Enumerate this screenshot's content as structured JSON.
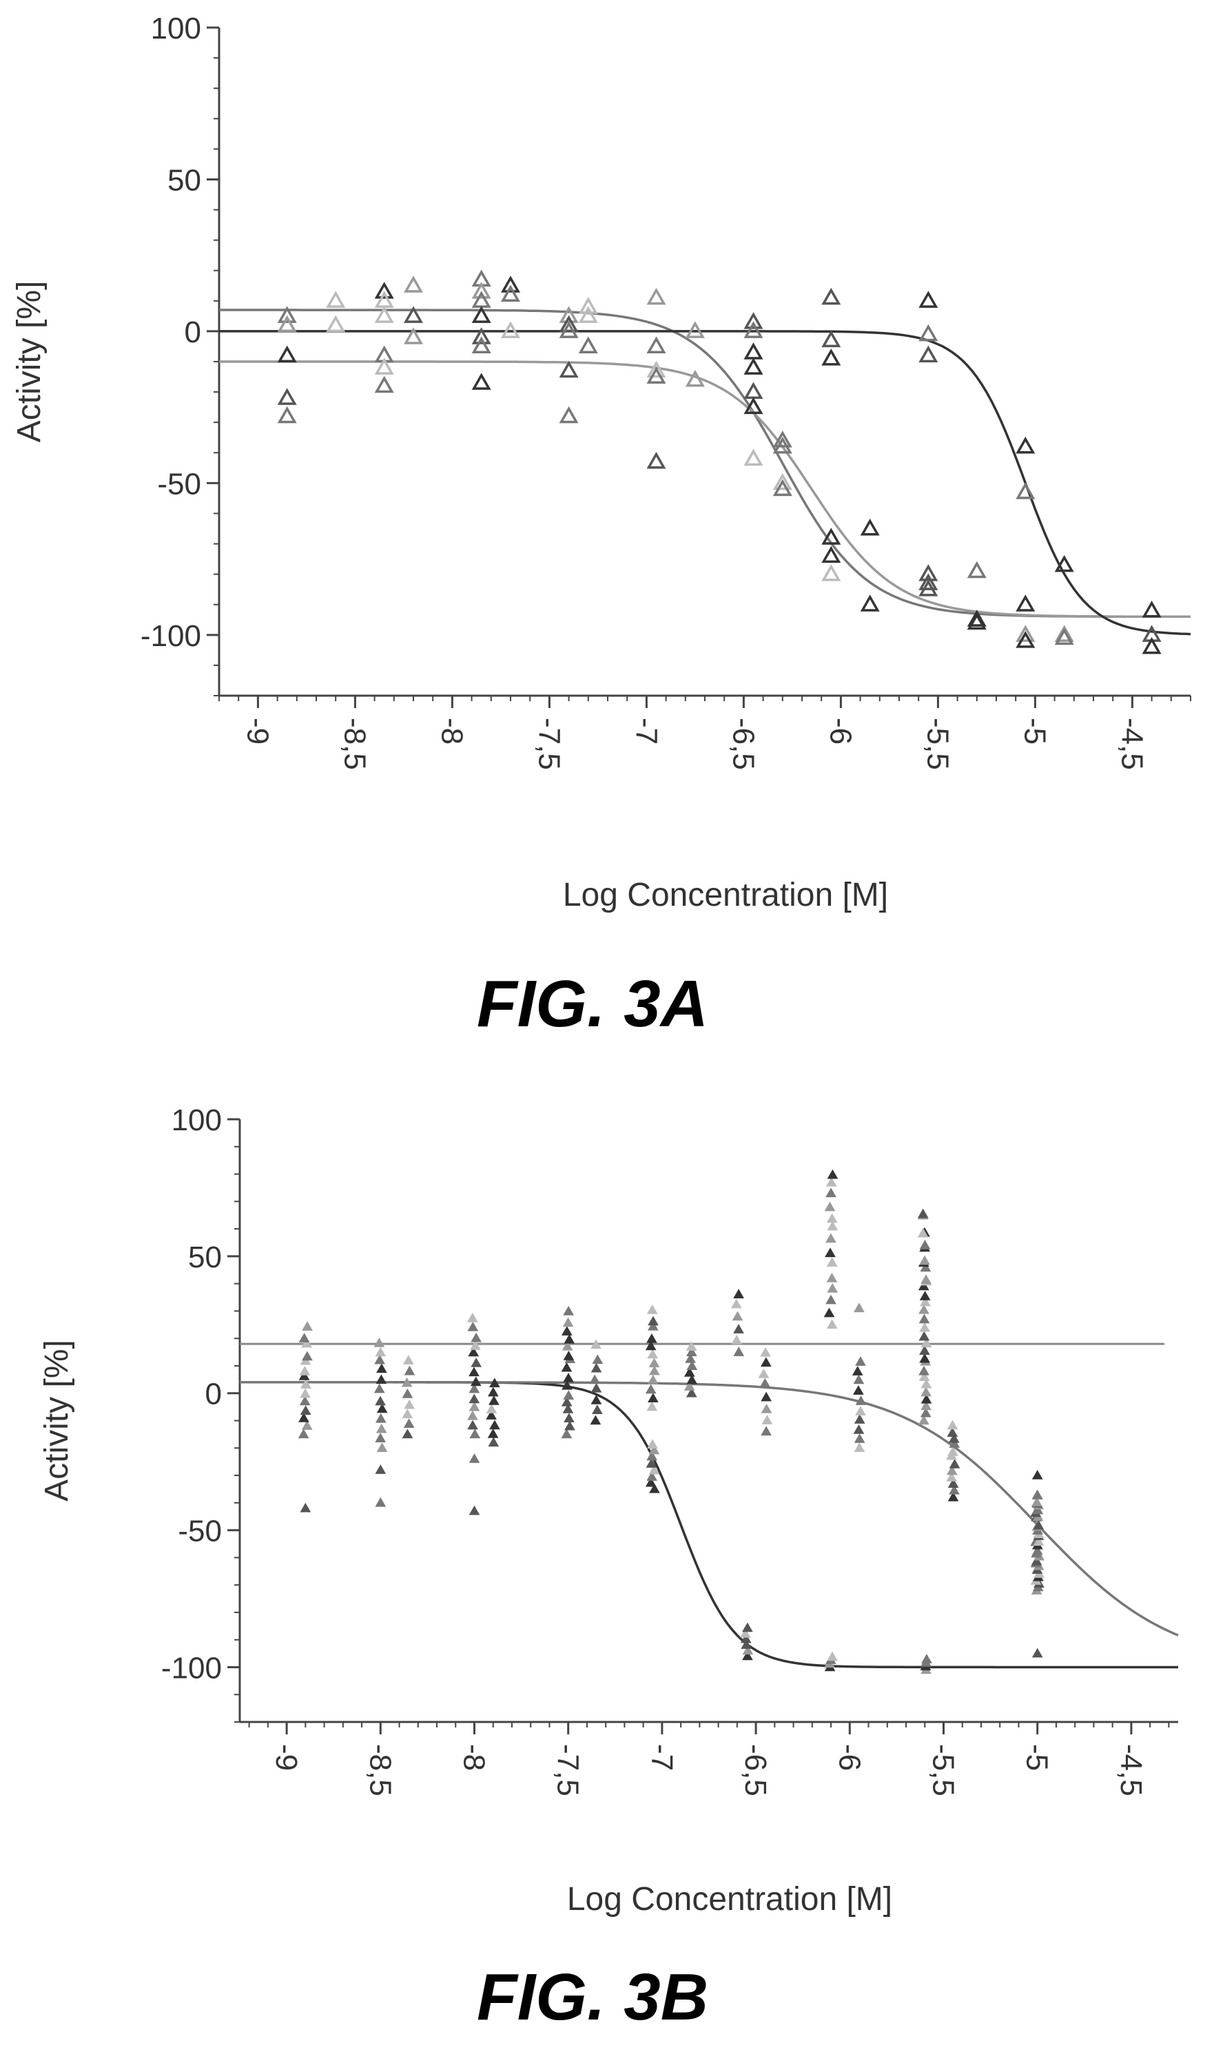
{
  "chart_data": [
    {
      "type": "scatter",
      "caption": "FIG. 3A",
      "xlabel": "Log Concentration [M]",
      "ylabel": "Activity [%]",
      "xlim": [
        -9.2,
        -4.2
      ],
      "ylim": [
        -120,
        100
      ],
      "xticks": [
        -9,
        -8.5,
        -8,
        -7.5,
        -7,
        -6.5,
        -6,
        -5.5,
        -5,
        -4.5
      ],
      "xtick_labels": [
        "-9",
        "-8,5",
        "-8",
        "-7,5",
        "-7",
        "-6,5",
        "-6",
        "-5,5",
        "-5",
        "-4,5"
      ],
      "yticks": [
        100,
        50,
        0,
        -50,
        -100
      ],
      "ytick_labels": [
        "100",
        "50",
        "0",
        "-50",
        "-100"
      ],
      "grid": false,
      "marker": "triangle",
      "curves": [
        {
          "bottom": 7,
          "top": -94,
          "logec50": -6.3,
          "hill": 2.0,
          "color": "#777777"
        },
        {
          "bottom": -10,
          "top": -94,
          "logec50": -6.15,
          "hill": 2.0,
          "color": "#999999"
        },
        {
          "bottom": 0,
          "top": -100,
          "logec50": -5.05,
          "hill": 3.0,
          "color": "#333333"
        }
      ],
      "points": [
        [
          -8.85,
          5
        ],
        [
          -8.85,
          2
        ],
        [
          -8.85,
          -8
        ],
        [
          -8.85,
          -22
        ],
        [
          -8.85,
          -28
        ],
        [
          -8.6,
          10
        ],
        [
          -8.6,
          2
        ],
        [
          -8.35,
          13
        ],
        [
          -8.35,
          10
        ],
        [
          -8.35,
          5
        ],
        [
          -8.35,
          -8
        ],
        [
          -8.35,
          -12
        ],
        [
          -8.35,
          -18
        ],
        [
          -8.2,
          15
        ],
        [
          -8.2,
          5
        ],
        [
          -8.2,
          -2
        ],
        [
          -7.85,
          17
        ],
        [
          -7.85,
          13
        ],
        [
          -7.85,
          10
        ],
        [
          -7.85,
          5
        ],
        [
          -7.85,
          -2
        ],
        [
          -7.85,
          -5
        ],
        [
          -7.85,
          -17
        ],
        [
          -7.7,
          15
        ],
        [
          -7.7,
          12
        ],
        [
          -7.7,
          0
        ],
        [
          -7.4,
          5
        ],
        [
          -7.4,
          2
        ],
        [
          -7.4,
          0
        ],
        [
          -7.4,
          -13
        ],
        [
          -7.4,
          -28
        ],
        [
          -7.3,
          8
        ],
        [
          -7.3,
          5
        ],
        [
          -7.3,
          -5
        ],
        [
          -6.95,
          11
        ],
        [
          -6.95,
          -5
        ],
        [
          -6.95,
          -13
        ],
        [
          -6.95,
          -15
        ],
        [
          -6.95,
          -43
        ],
        [
          -6.75,
          0
        ],
        [
          -6.75,
          -16
        ],
        [
          -6.45,
          3
        ],
        [
          -6.45,
          0
        ],
        [
          -6.45,
          -7
        ],
        [
          -6.45,
          -12
        ],
        [
          -6.45,
          -20
        ],
        [
          -6.45,
          -25
        ],
        [
          -6.45,
          -42
        ],
        [
          -6.3,
          -36
        ],
        [
          -6.3,
          -38
        ],
        [
          -6.3,
          -50
        ],
        [
          -6.3,
          -52
        ],
        [
          -6.05,
          11
        ],
        [
          -6.05,
          -3
        ],
        [
          -6.05,
          -9
        ],
        [
          -6.05,
          -68
        ],
        [
          -6.05,
          -74
        ],
        [
          -6.05,
          -80
        ],
        [
          -5.85,
          -65
        ],
        [
          -5.85,
          -90
        ],
        [
          -5.55,
          10
        ],
        [
          -5.55,
          -1
        ],
        [
          -5.55,
          -8
        ],
        [
          -5.55,
          -80
        ],
        [
          -5.55,
          -83
        ],
        [
          -5.55,
          -85
        ],
        [
          -5.3,
          -79
        ],
        [
          -5.3,
          -95
        ],
        [
          -5.3,
          -96
        ],
        [
          -5.05,
          -38
        ],
        [
          -5.05,
          -53
        ],
        [
          -5.05,
          -90
        ],
        [
          -5.05,
          -100
        ],
        [
          -5.05,
          -102
        ],
        [
          -4.85,
          -77
        ],
        [
          -4.85,
          -100
        ],
        [
          -4.85,
          -101
        ],
        [
          -4.4,
          -92
        ],
        [
          -4.4,
          -100
        ],
        [
          -4.4,
          -104
        ]
      ]
    },
    {
      "type": "scatter",
      "caption": "FIG. 3B",
      "xlabel": "Log Concentration [M]",
      "ylabel": "Activity [%]",
      "xlim": [
        -9.25,
        -4.25
      ],
      "ylim": [
        -120,
        100
      ],
      "xticks": [
        -9,
        -8.5,
        -8,
        -7.5,
        -7,
        -6.5,
        -6,
        -5.5,
        -5,
        -4.5
      ],
      "xtick_labels": [
        "-9",
        "-8,5",
        "-8",
        "-7,5",
        "-7",
        "-6,5",
        "-6",
        "-5,5",
        "-5",
        "-4,5"
      ],
      "yticks": [
        100,
        50,
        0,
        -50,
        -100
      ],
      "ytick_labels": [
        "100",
        "50",
        "0",
        "-50",
        "-100"
      ],
      "grid": false,
      "marker": "small-triangle",
      "reference_line": {
        "y": 18,
        "color": "#888888"
      },
      "curves": [
        {
          "bottom": 4,
          "top": -100,
          "logec50": -6.9,
          "hill": 3.0,
          "color": "#333333"
        },
        {
          "bottom": 4,
          "top": -100,
          "logec50": -5.0,
          "hill": 1.2,
          "color": "#777777"
        }
      ],
      "point_groups": [
        {
          "x": -8.9,
          "ymin": -15,
          "ymax": 25,
          "count": 14,
          "extra": [
            -42
          ]
        },
        {
          "x": -8.5,
          "ymin": -20,
          "ymax": 20,
          "count": 12,
          "extra": [
            -28,
            -40
          ]
        },
        {
          "x": -8.35,
          "ymin": -15,
          "ymax": 12,
          "count": 8,
          "extra": []
        },
        {
          "x": -8.0,
          "ymin": -15,
          "ymax": 29,
          "count": 14,
          "extra": [
            -24,
            -43
          ]
        },
        {
          "x": -7.9,
          "ymin": -18,
          "ymax": 5,
          "count": 8,
          "extra": []
        },
        {
          "x": -7.5,
          "ymin": -15,
          "ymax": 31,
          "count": 16,
          "extra": []
        },
        {
          "x": -7.35,
          "ymin": -10,
          "ymax": 18,
          "count": 8,
          "extra": []
        },
        {
          "x": -7.05,
          "ymin": -5,
          "ymax": 32,
          "count": 12,
          "extra": []
        },
        {
          "x": -7.05,
          "ymin": -35,
          "ymax": -18,
          "count": 8,
          "extra": []
        },
        {
          "x": -6.85,
          "ymin": 0,
          "ymax": 18,
          "count": 8,
          "extra": []
        },
        {
          "x": -6.6,
          "ymin": 15,
          "ymax": 37,
          "count": 6,
          "extra": []
        },
        {
          "x": -6.55,
          "ymin": -96,
          "ymax": -85,
          "count": 6,
          "extra": []
        },
        {
          "x": -6.45,
          "ymin": -14,
          "ymax": 17,
          "count": 8,
          "extra": []
        },
        {
          "x": -6.1,
          "ymin": 25,
          "ymax": 84,
          "count": 14,
          "extra": []
        },
        {
          "x": -6.1,
          "ymin": -100,
          "ymax": -96,
          "count": 4,
          "extra": []
        },
        {
          "x": -5.95,
          "ymin": -20,
          "ymax": 12,
          "count": 10,
          "extra": [
            31
          ]
        },
        {
          "x": -5.6,
          "ymin": -10,
          "ymax": 69,
          "count": 30,
          "extra": []
        },
        {
          "x": -5.6,
          "ymin": -101,
          "ymax": -97,
          "count": 4,
          "extra": []
        },
        {
          "x": -5.45,
          "ymin": -38,
          "ymax": -10,
          "count": 12,
          "extra": []
        },
        {
          "x": -5.0,
          "ymin": -72,
          "ymax": -35,
          "count": 30,
          "extra": [
            -30,
            -95
          ]
        }
      ]
    }
  ]
}
